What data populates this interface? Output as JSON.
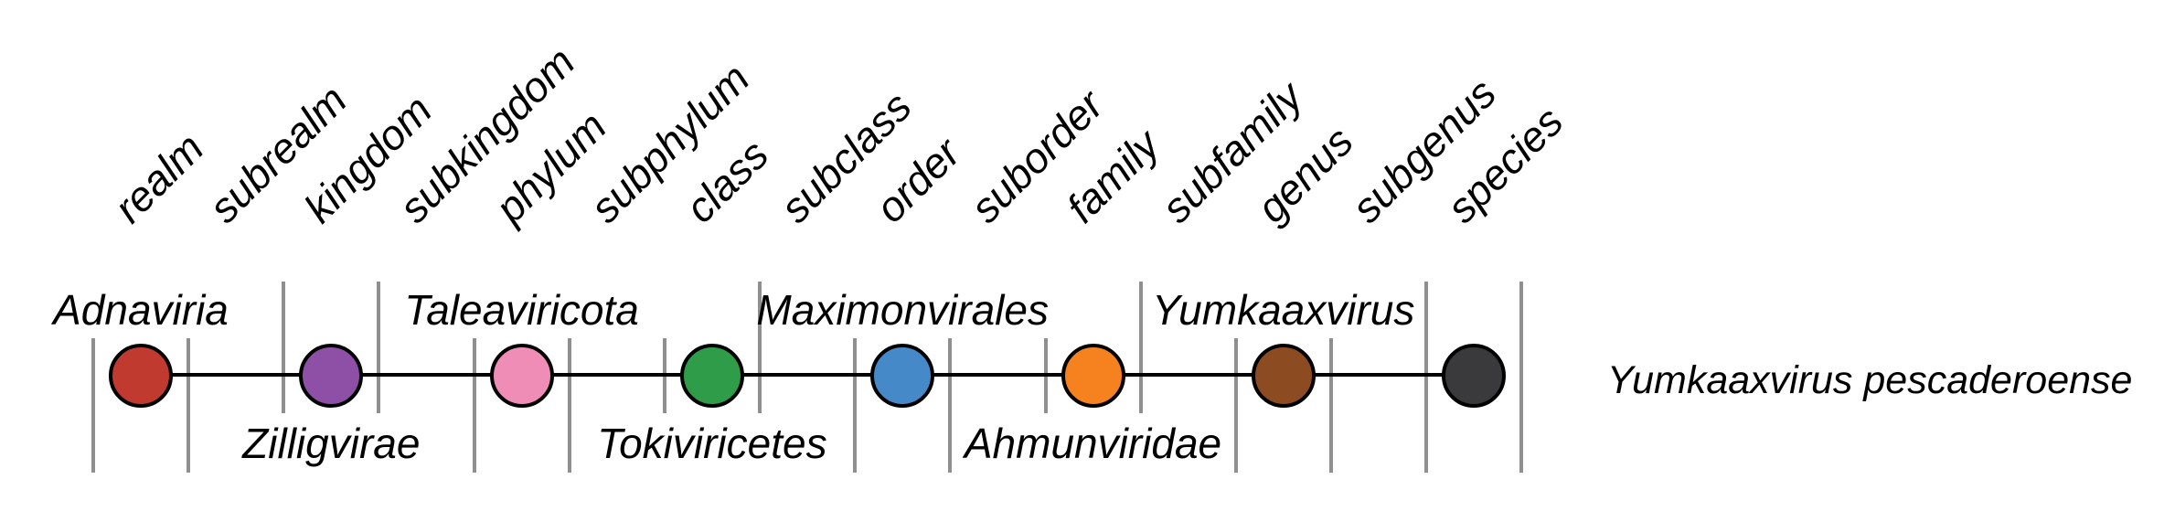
{
  "diagram": {
    "description": "Virus taxonomy rank ladder",
    "rank_axis": {
      "labels": [
        "realm",
        "subrealm",
        "kingdom",
        "subkingdom",
        "phylum",
        "subphylum",
        "class",
        "subclass",
        "order",
        "suborder",
        "family",
        "subfamily",
        "genus",
        "subgenus",
        "species"
      ]
    },
    "separators": {
      "types": [
        "down",
        "down",
        "up",
        "up",
        "down",
        "down",
        "short",
        "up",
        "down",
        "down",
        "short",
        "up",
        "down",
        "down",
        "full",
        "full"
      ],
      "color": "#8f8f8f"
    },
    "nodes": [
      {
        "rank": "realm",
        "rank_index": 0,
        "taxon": "Adnaviria",
        "color": "#c13a2f"
      },
      {
        "rank": "kingdom",
        "rank_index": 2,
        "taxon": "Zilligvirae",
        "color": "#8d50a6"
      },
      {
        "rank": "phylum",
        "rank_index": 4,
        "taxon": "Taleaviricota",
        "color": "#f08db6"
      },
      {
        "rank": "class",
        "rank_index": 6,
        "taxon": "Tokiviricetes",
        "color": "#2e9c48"
      },
      {
        "rank": "order",
        "rank_index": 8,
        "taxon": "Maximonvirales",
        "color": "#4689c8"
      },
      {
        "rank": "family",
        "rank_index": 10,
        "taxon": "Ahmunviridae",
        "color": "#f5821f"
      },
      {
        "rank": "genus",
        "rank_index": 12,
        "taxon": "Yumkaaxvirus",
        "color": "#8d4b21"
      },
      {
        "rank": "species",
        "rank_index": 14,
        "taxon": "Yumkaaxvirus pescaderoense",
        "color": "#3a3a3c"
      }
    ],
    "taxon_labels": [
      {
        "text": "Adnaviria",
        "rank_index": 0,
        "side": "above"
      },
      {
        "text": "Zilligvirae",
        "rank_index": 2,
        "side": "below"
      },
      {
        "text": "Taleaviricota",
        "rank_index": 4,
        "side": "above"
      },
      {
        "text": "Tokiviricetes",
        "rank_index": 6,
        "side": "below"
      },
      {
        "text": "Maximonvirales",
        "rank_index": 8,
        "side": "above"
      },
      {
        "text": "Ahmunviridae",
        "rank_index": 10,
        "side": "below"
      },
      {
        "text": "Yumkaaxvirus",
        "rank_index": 12,
        "side": "above"
      }
    ],
    "species_label": {
      "text": "Yumkaaxvirus pescaderoense"
    },
    "line_color": "#000000"
  }
}
